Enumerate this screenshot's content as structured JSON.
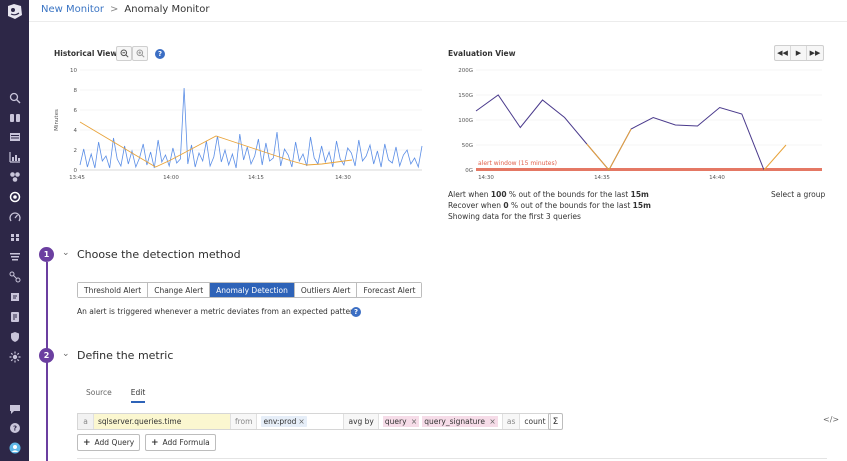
{
  "breadcrumb": {
    "parent": "New Monitor",
    "separator": ">",
    "current": "Anomaly Monitor"
  },
  "historical": {
    "title": "Historical View",
    "help": "?",
    "ylabel": "Minutes"
  },
  "evaluation": {
    "title": "Evaluation View",
    "alert_window_label": "alert window (15 minutes)",
    "alert_line": {
      "pre": "Alert when ",
      "pct": "100",
      "mid": " % out of the bounds for the last ",
      "win": "15m"
    },
    "recover_line": {
      "pre": "Recover when ",
      "pct": "0",
      "mid": " % out of the bounds for the last ",
      "win": "15m"
    },
    "showing": "Showing data for the first 3 queries",
    "select_group": "Select a group"
  },
  "step1": {
    "number": "1",
    "title": "Choose the detection method",
    "methods": [
      "Threshold Alert",
      "Change Alert",
      "Anomaly Detection",
      "Outliers Alert",
      "Forecast Alert"
    ],
    "active_method": "Anomaly Detection",
    "description": "An alert is triggered whenever a metric deviates from an expected pattern."
  },
  "step2": {
    "number": "2",
    "title": "Define the metric",
    "tabs": [
      "Source",
      "Edit"
    ],
    "active_tab": "Edit",
    "query": {
      "letter": "a",
      "metric": "sqlserver.queries.time",
      "from_label": "from",
      "from_tag": "env:prod",
      "agg": "avg by",
      "group_by": [
        "query",
        "query_signature"
      ],
      "as_label": "as",
      "as_value": "count"
    },
    "sigma": "Σ",
    "code_icon": "</>",
    "add_query": "Add Query",
    "add_formula": "Add Formula"
  },
  "colors": {
    "sidebar": "#2d2747",
    "accent_purple": "#6b3fa0",
    "primary_blue": "#2e63b8",
    "link": "#3b75c4",
    "series_blue": "#5b8ee6",
    "series_orange": "#e8a33a",
    "eval_line": "#4a3a8c",
    "eval_alert": "#e0604a"
  },
  "chart_data": [
    {
      "type": "line",
      "title": "Historical View",
      "ylabel": "Minutes",
      "x_ticks": [
        "13:45",
        "14:00",
        "14:15",
        "14:30"
      ],
      "y_ticks": [
        "0",
        "2",
        "4",
        "6",
        "8",
        "10"
      ],
      "ylim": [
        0,
        10
      ],
      "grid": true,
      "series": [
        {
          "values": [
            0.5,
            2.1,
            0.3,
            1.6,
            0.2,
            2.8,
            0.9,
            1.4,
            0.2,
            3.2,
            1.1,
            0.4,
            2.4,
            0.6,
            1.9,
            0.3,
            1.2,
            2.6,
            0.5,
            1.8,
            0.2,
            3.0,
            0.8,
            1.5,
            0.4,
            2.2,
            0.7,
            1.1,
            8.2,
            0.6,
            2.5,
            0.3,
            1.7,
            0.9,
            2.9,
            0.4,
            1.3,
            3.4,
            0.8,
            2.0,
            0.5,
            1.6,
            0.2,
            3.6,
            1.0,
            2.3,
            0.6,
            1.4,
            3.1,
            0.5,
            2.7,
            0.9,
            1.2,
            3.8,
            0.4,
            2.1,
            1.5,
            0.3,
            2.8,
            0.9,
            1.6,
            0.4,
            3.3,
            1.2,
            0.6,
            2.4,
            0.8,
            1.8,
            0.3,
            2.9,
            1.1,
            0.5,
            2.2,
            1.7,
            0.4,
            3.0,
            0.9,
            1.4,
            2.5,
            0.6,
            1.9,
            0.3,
            2.6,
            1.0,
            0.7,
            2.3,
            0.4,
            1.5,
            2.0,
            0.6,
            1.2,
            0.3,
            2.4
          ]
        },
        {
          "values": [
            4.8,
            3.9,
            3.0,
            2.1,
            1.2,
            0.3,
            1.0,
            1.8,
            2.6,
            3.4,
            2.9,
            2.4,
            1.9,
            1.4,
            0.9,
            0.5,
            0.6,
            0.8,
            1.0
          ]
        }
      ]
    },
    {
      "type": "line",
      "title": "Evaluation View",
      "x_ticks": [
        "14:30",
        "14:35",
        "14:40"
      ],
      "y_ticks": [
        "0G",
        "50G",
        "100G",
        "150G",
        "200G"
      ],
      "ylim": [
        0,
        200
      ],
      "grid": true,
      "series": [
        {
          "values": [
            118,
            150,
            85,
            140,
            105,
            52,
            0,
            82,
            105,
            90,
            88,
            125,
            112,
            0
          ]
        },
        {
          "values": [
            0,
            50
          ]
        }
      ],
      "annotation": "alert window (15 minutes)"
    }
  ]
}
